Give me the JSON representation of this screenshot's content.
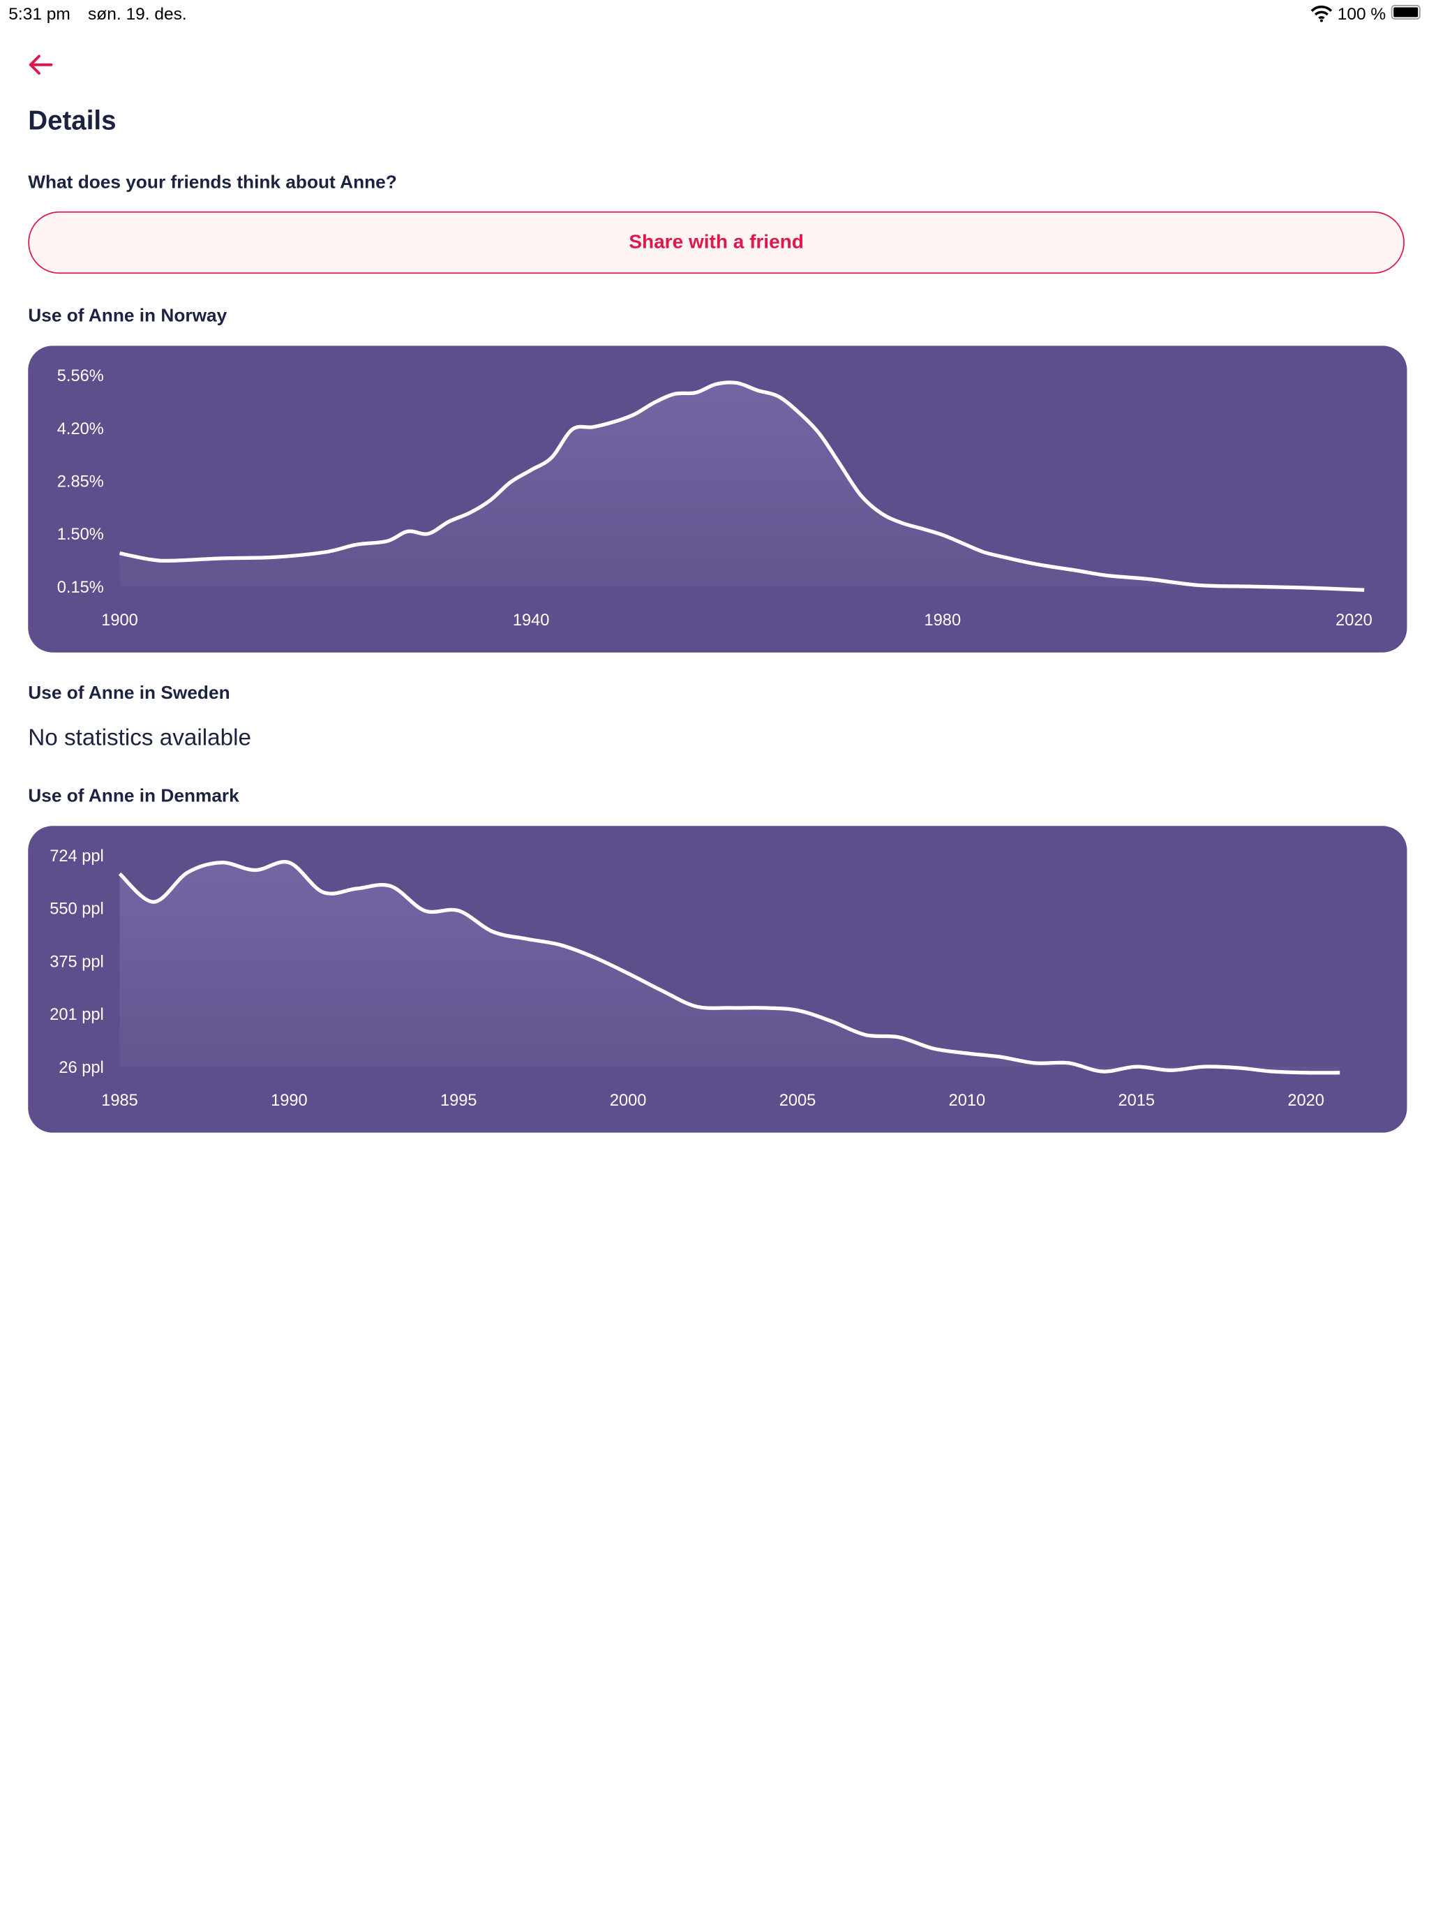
{
  "status_bar": {
    "time": "5:31 pm",
    "date": "søn. 19. des.",
    "battery": "100 %",
    "icons": [
      "wifi-icon",
      "battery-icon"
    ]
  },
  "nav": {
    "back_icon": "arrow-left-icon"
  },
  "page_title": "Details",
  "share_section": {
    "question": "What does your friends think about Anne?",
    "button_label": "Share with a friend"
  },
  "colors": {
    "accent": "#e0174a",
    "card": "#5e4f8c",
    "text": "#1b2340"
  },
  "sweden": {
    "title": "Use of Anne in Sweden",
    "message": "No statistics available"
  },
  "chart_data": [
    {
      "type": "area",
      "title": "Use of Anne in Norway",
      "y_ticks": [
        "5.56%",
        "4.20%",
        "2.85%",
        "1.50%",
        "0.15%"
      ],
      "x_ticks": [
        "1900",
        "1940",
        "1980",
        "2020"
      ],
      "ylim": [
        0.15,
        5.56
      ],
      "unit": "%",
      "x": [
        1900,
        1903,
        1905,
        1910,
        1915,
        1920,
        1923,
        1926,
        1928,
        1930,
        1932,
        1934,
        1936,
        1938,
        1940,
        1942,
        1944,
        1946,
        1948,
        1950,
        1952,
        1954,
        1956,
        1958,
        1960,
        1962,
        1964,
        1966,
        1968,
        1970,
        1972,
        1974,
        1976,
        1978,
        1980,
        1982,
        1984,
        1986,
        1988,
        1990,
        1993,
        1996,
        2000,
        2005,
        2010,
        2015,
        2021
      ],
      "y": [
        1.0,
        0.84,
        0.81,
        0.87,
        0.9,
        1.03,
        1.22,
        1.31,
        1.56,
        1.5,
        1.81,
        2.03,
        2.35,
        2.82,
        3.13,
        3.45,
        4.17,
        4.23,
        4.36,
        4.55,
        4.86,
        5.08,
        5.11,
        5.33,
        5.36,
        5.17,
        5.02,
        4.61,
        4.07,
        3.29,
        2.5,
        2.03,
        1.78,
        1.63,
        1.47,
        1.25,
        1.03,
        0.9,
        0.78,
        0.68,
        0.56,
        0.43,
        0.34,
        0.18,
        0.15,
        0.12,
        0.06
      ]
    },
    {
      "type": "area",
      "title": "Use of Anne in Denmark",
      "y_ticks": [
        "724 ppl",
        "550 ppl",
        "375 ppl",
        "201 ppl",
        "26 ppl"
      ],
      "x_ticks": [
        "1985",
        "1990",
        "1995",
        "2000",
        "2005",
        "2010",
        "2015",
        "2020"
      ],
      "ylim": [
        26,
        724
      ],
      "unit": "ppl",
      "x": [
        1985,
        1986,
        1987,
        1988,
        1989,
        1990,
        1991,
        1992,
        1993,
        1994,
        1995,
        1996,
        1997,
        1998,
        1999,
        2000,
        2001,
        2002,
        2003,
        2004,
        2005,
        2006,
        2007,
        2008,
        2009,
        2010,
        2011,
        2012,
        2013,
        2014,
        2015,
        2016,
        2017,
        2018,
        2019,
        2020,
        2021
      ],
      "y": [
        663,
        570,
        667,
        700,
        675,
        700,
        602,
        614,
        622,
        541,
        541,
        472,
        448,
        428,
        387,
        334,
        277,
        225,
        220,
        220,
        212,
        176,
        131,
        123,
        86,
        70,
        58,
        38,
        38,
        10,
        26,
        14,
        26,
        22,
        10,
        6,
        6
      ]
    }
  ]
}
